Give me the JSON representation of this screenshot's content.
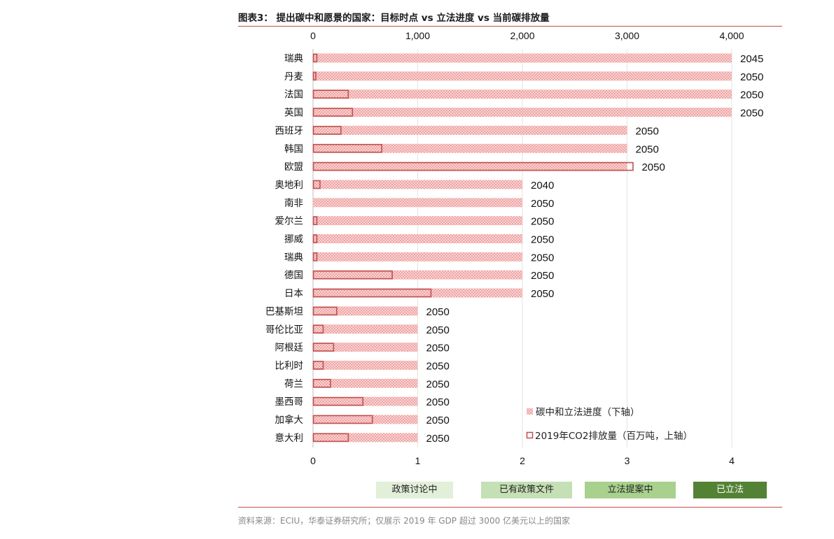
{
  "title": "图表3：  提出碳中和愿景的国家：目标时点 vs 立法进度 vs 当前碳排放量",
  "chart_data": {
    "type": "bar",
    "orientation": "horizontal",
    "categories": [
      "瑞典",
      "丹麦",
      "法国",
      "英国",
      "西班牙",
      "韩国",
      "欧盟",
      "奥地利",
      "南非",
      "爱尔兰",
      "挪威",
      "瑞典",
      "德国",
      "日本",
      "巴基斯坦",
      "哥伦比亚",
      "阿根廷",
      "比利时",
      "荷兰",
      "墨西哥",
      "加拿大",
      "意大利"
    ],
    "series": [
      {
        "name": "碳中和立法进度（下轴）",
        "axis": "bottom",
        "values": [
          4,
          4,
          4,
          4,
          3,
          3,
          3,
          2,
          2,
          2,
          2,
          2,
          2,
          2,
          1,
          1,
          1,
          1,
          1,
          1,
          1,
          1
        ]
      },
      {
        "name": "2019年CO2排放量（百万吨，上轴）",
        "axis": "top",
        "values": [
          40,
          30,
          340,
          380,
          270,
          660,
          3060,
          70,
          0,
          40,
          40,
          40,
          760,
          1130,
          230,
          100,
          200,
          100,
          170,
          480,
          570,
          340
        ]
      }
    ],
    "target_years": [
      "2045",
      "2050",
      "2050",
      "2050",
      "2050",
      "2050",
      "2050",
      "2040",
      "2050",
      "2050",
      "2050",
      "2050",
      "2050",
      "2050",
      "2050",
      "2050",
      "2050",
      "2050",
      "2050",
      "2050",
      "2050",
      "2050"
    ],
    "top_axis": {
      "range": [
        0,
        4000
      ],
      "ticks": [
        "0",
        "1,000",
        "2,000",
        "3,000",
        "4,000"
      ],
      "tick_values": [
        0,
        1000,
        2000,
        3000,
        4000
      ]
    },
    "bottom_axis": {
      "range": [
        0,
        4
      ],
      "ticks": [
        "0",
        "1",
        "2",
        "3",
        "4"
      ],
      "tick_values": [
        0,
        1,
        2,
        3,
        4
      ]
    },
    "legend_placement": "bottom-right",
    "grid": "vertical",
    "colors": {
      "accent": "#c0504d",
      "pattern": "#f2a7a7"
    }
  },
  "stage_legend": [
    {
      "label": "政策讨论中",
      "color": "#e2efd9",
      "text_color": "#222222"
    },
    {
      "label": "已有政策文件",
      "color": "#c5e0b4",
      "text_color": "#222222"
    },
    {
      "label": "立法提案中",
      "color": "#a9d18e",
      "text_color": "#222222"
    },
    {
      "label": "已立法",
      "color": "#548235",
      "text_color": "#ffffff"
    }
  ],
  "source": "资料来源：ECIU，华泰证券研究所；仅展示 2019 年 GDP 超过 3000 亿美元以上的国家"
}
